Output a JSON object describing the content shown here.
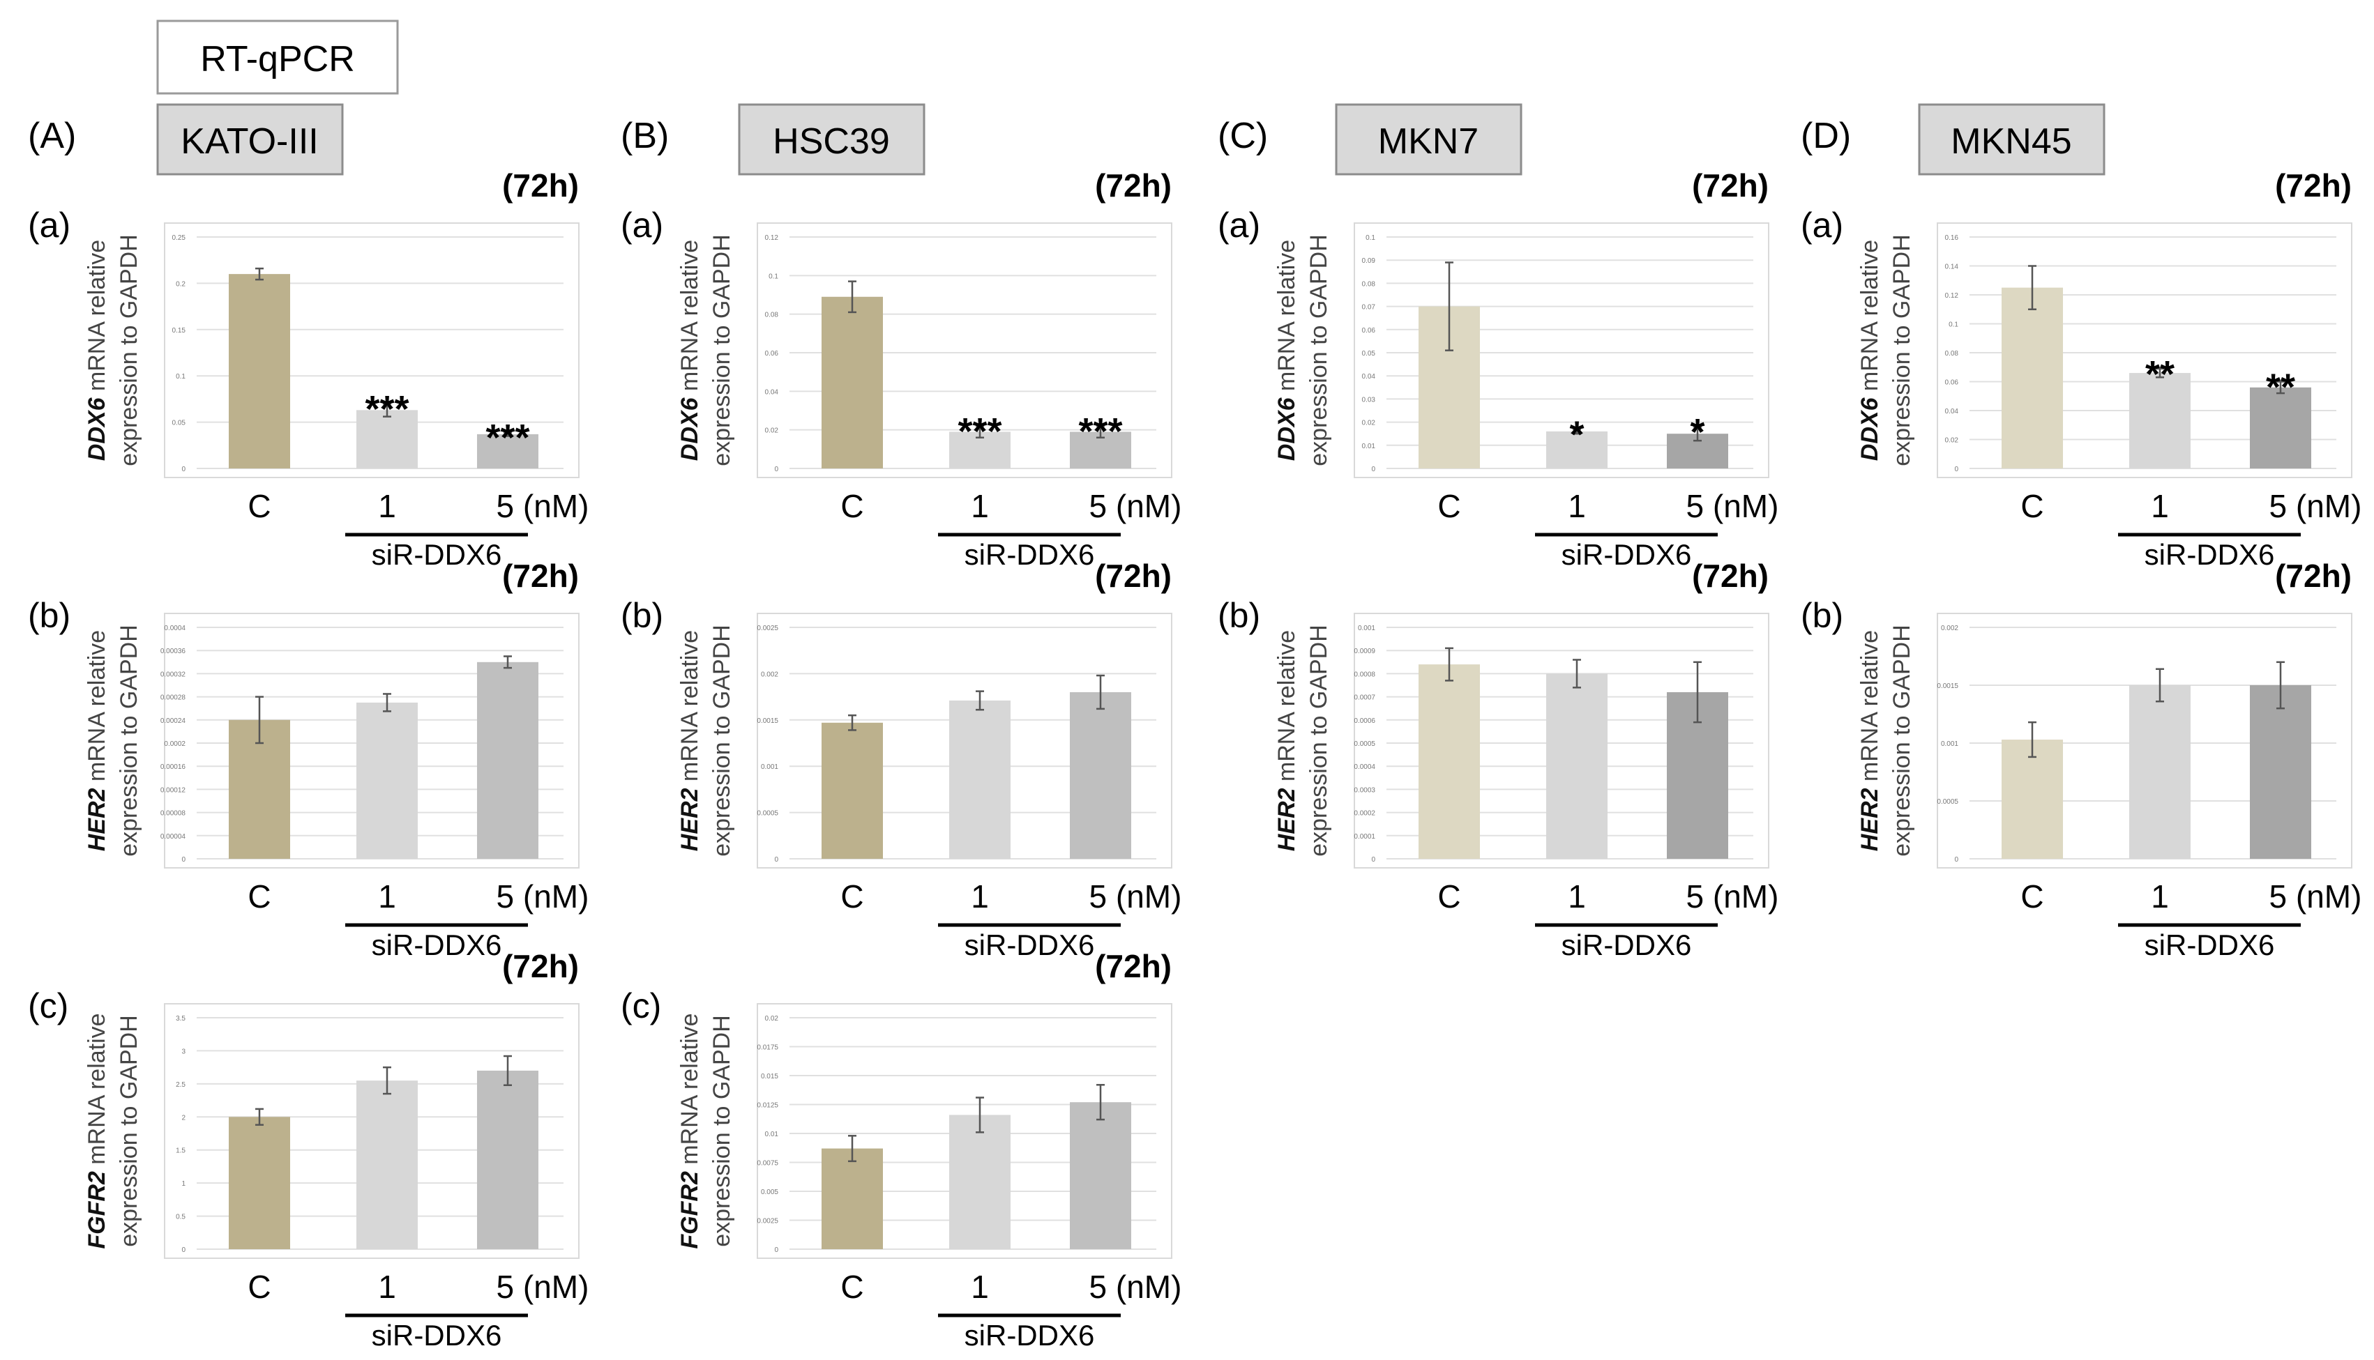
{
  "method_label": "RT-qPCR",
  "colors": {
    "bar_control_dark": "#bcb18d",
    "bar_control_light": "#ddd8c2",
    "bar_1nM": "#d7d7d7",
    "bar_5nM_light": "#bfbfbf",
    "bar_5nM_dark": "#a6a6a6",
    "grid": "#e0e0e0",
    "cellline_box": "#d9d9d9"
  },
  "y_label_suffix_1": " mRNA relative",
  "y_label_line_2": "expression to GAPDH",
  "columns": [
    {
      "panel": "(A)",
      "cell_line": "KATO-III"
    },
    {
      "panel": "(B)",
      "cell_line": "HSC39"
    },
    {
      "panel": "(C)",
      "cell_line": "MKN7"
    },
    {
      "panel": "(D)",
      "cell_line": "MKN45"
    }
  ],
  "chart_data": [
    {
      "type": "bar",
      "column": 0,
      "row": 0,
      "sub": "(a)",
      "time": "(72h)",
      "gene": "DDX6",
      "categories": [
        "C",
        "1",
        "5 (nM)"
      ],
      "group_label": "siR-DDX6",
      "values": [
        0.21,
        0.063,
        0.037
      ],
      "errors": [
        0.006,
        0.007,
        0.002
      ],
      "significance": [
        "",
        "***",
        "***"
      ],
      "ylim": [
        0,
        0.25
      ],
      "yticks": [
        "0",
        "0.05",
        "0.1",
        "0.15",
        "0.2",
        "0.25"
      ]
    },
    {
      "type": "bar",
      "column": 0,
      "row": 1,
      "sub": "(b)",
      "time": "(72h)",
      "gene": "HER2",
      "categories": [
        "C",
        "1",
        "5 (nM)"
      ],
      "group_label": "siR-DDX6",
      "values": [
        0.00024,
        0.00027,
        0.00034
      ],
      "errors": [
        4e-05,
        1.5e-05,
        1e-05
      ],
      "significance": [
        "",
        "",
        ""
      ],
      "ylim": [
        0,
        0.0004
      ],
      "yticks": [
        "0",
        "0.00004",
        "0.00008",
        "0.00012",
        "0.00016",
        "0.0002",
        "0.00024",
        "0.00028",
        "0.00032",
        "0.00036",
        "0.0004"
      ]
    },
    {
      "type": "bar",
      "column": 0,
      "row": 2,
      "sub": "(c)",
      "time": "(72h)",
      "gene": "FGFR2",
      "categories": [
        "C",
        "1",
        "5 (nM)"
      ],
      "group_label": "siR-DDX6",
      "values": [
        2.0,
        2.55,
        2.7
      ],
      "errors": [
        0.12,
        0.2,
        0.22
      ],
      "significance": [
        "",
        "",
        ""
      ],
      "ylim": [
        0,
        3.5
      ],
      "yticks": [
        "0",
        "0.5",
        "1",
        "1.5",
        "2",
        "2.5",
        "3",
        "3.5"
      ]
    },
    {
      "type": "bar",
      "column": 1,
      "row": 0,
      "sub": "(a)",
      "time": "(72h)",
      "gene": "DDX6",
      "categories": [
        "C",
        "1",
        "5 (nM)"
      ],
      "group_label": "siR-DDX6",
      "values": [
        0.089,
        0.019,
        0.019
      ],
      "errors": [
        0.008,
        0.003,
        0.003
      ],
      "significance": [
        "",
        "***",
        "***"
      ],
      "ylim": [
        0,
        0.12
      ],
      "yticks": [
        "0",
        "0.02",
        "0.04",
        "0.06",
        "0.08",
        "0.1",
        "0.12"
      ]
    },
    {
      "type": "bar",
      "column": 1,
      "row": 1,
      "sub": "(b)",
      "time": "(72h)",
      "gene": "HER2",
      "categories": [
        "C",
        "1",
        "5 (nM)"
      ],
      "group_label": "siR-DDX6",
      "values": [
        0.00147,
        0.00171,
        0.0018
      ],
      "errors": [
        8e-05,
        0.0001,
        0.00018
      ],
      "significance": [
        "",
        "",
        ""
      ],
      "ylim": [
        0,
        0.0025
      ],
      "yticks": [
        "0",
        "0.0005",
        "0.001",
        "0.0015",
        "0.002",
        "0.0025"
      ]
    },
    {
      "type": "bar",
      "column": 1,
      "row": 2,
      "sub": "(c)",
      "time": "(72h)",
      "gene": "FGFR2",
      "categories": [
        "C",
        "1",
        "5 (nM)"
      ],
      "group_label": "siR-DDX6",
      "values": [
        0.0087,
        0.0116,
        0.0127
      ],
      "errors": [
        0.0011,
        0.0015,
        0.0015
      ],
      "significance": [
        "",
        "",
        ""
      ],
      "ylim": [
        0,
        0.02
      ],
      "yticks": [
        "0",
        "0.0025",
        "0.005",
        "0.0075",
        "0.01",
        "0.0125",
        "0.015",
        "0.0175",
        "0.02"
      ]
    },
    {
      "type": "bar",
      "column": 2,
      "row": 0,
      "sub": "(a)",
      "time": "(72h)",
      "gene": "DDX6",
      "categories": [
        "C",
        "1",
        "5 (nM)"
      ],
      "group_label": "siR-DDX6",
      "values": [
        0.07,
        0.016,
        0.015
      ],
      "errors": [
        0.019,
        0.001,
        0.003
      ],
      "significance": [
        "",
        "*",
        "*"
      ],
      "ylim": [
        0,
        0.1
      ],
      "yticks": [
        "0",
        "0.01",
        "0.02",
        "0.03",
        "0.04",
        "0.05",
        "0.06",
        "0.07",
        "0.08",
        "0.09",
        "0.1"
      ]
    },
    {
      "type": "bar",
      "column": 2,
      "row": 1,
      "sub": "(b)",
      "time": "(72h)",
      "gene": "HER2",
      "categories": [
        "C",
        "1",
        "5 (nM)"
      ],
      "group_label": "siR-DDX6",
      "values": [
        0.00084,
        0.0008,
        0.00072
      ],
      "errors": [
        7e-05,
        6e-05,
        0.00013
      ],
      "significance": [
        "",
        "",
        ""
      ],
      "ylim": [
        0,
        0.001
      ],
      "yticks": [
        "0",
        "0.0001",
        "0.0002",
        "0.0003",
        "0.0004",
        "0.0005",
        "0.0006",
        "0.0007",
        "0.0008",
        "0.0009",
        "0.001"
      ]
    },
    {
      "type": "bar",
      "column": 3,
      "row": 0,
      "sub": "(a)",
      "time": "(72h)",
      "gene": "DDX6",
      "categories": [
        "C",
        "1",
        "5 (nM)"
      ],
      "group_label": "siR-DDX6",
      "values": [
        0.125,
        0.066,
        0.056
      ],
      "errors": [
        0.015,
        0.003,
        0.004
      ],
      "significance": [
        "",
        "**",
        "**"
      ],
      "ylim": [
        0,
        0.16
      ],
      "yticks": [
        "0",
        "0.02",
        "0.04",
        "0.06",
        "0.08",
        "0.1",
        "0.12",
        "0.14",
        "0.16"
      ]
    },
    {
      "type": "bar",
      "column": 3,
      "row": 1,
      "sub": "(b)",
      "time": "(72h)",
      "gene": "HER2",
      "categories": [
        "C",
        "1",
        "5 (nM)"
      ],
      "group_label": "siR-DDX6",
      "values": [
        0.00103,
        0.0015,
        0.0015
      ],
      "errors": [
        0.00015,
        0.00014,
        0.0002
      ],
      "significance": [
        "",
        "",
        ""
      ],
      "ylim": [
        0,
        0.002
      ],
      "yticks": [
        "0",
        "0.0005",
        "0.001",
        "0.0015",
        "0.002"
      ]
    }
  ]
}
